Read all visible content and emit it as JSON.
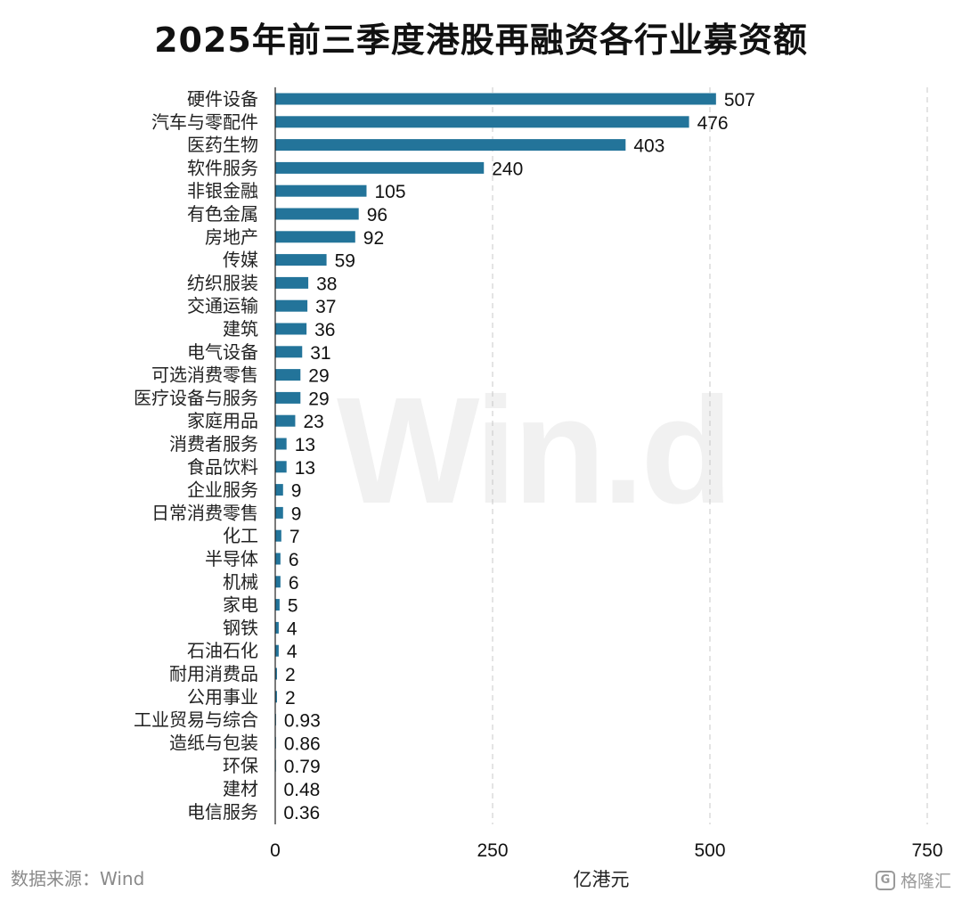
{
  "title": "2025年前三季度港股再融资各行业募资额",
  "source": "数据来源：Wind",
  "watermark": "Win.d",
  "brand": {
    "logo": "G",
    "name": "格隆汇"
  },
  "colors": {
    "bar": "#23749a",
    "grid": "#c8c8c8",
    "axis": "#222222"
  },
  "chart_data": {
    "type": "bar",
    "orientation": "horizontal",
    "categories": [
      "硬件设备",
      "汽车与零配件",
      "医药生物",
      "软件服务",
      "非银金融",
      "有色金属",
      "房地产",
      "传媒",
      "纺织服装",
      "交通运输",
      "建筑",
      "电气设备",
      "可选消费零售",
      "医疗设备与服务",
      "家庭用品",
      "消费者服务",
      "食品饮料",
      "企业服务",
      "日常消费零售",
      "化工",
      "半导体",
      "机械",
      "家电",
      "钢铁",
      "石油石化",
      "耐用消费品",
      "公用事业",
      "工业贸易与综合",
      "造纸与包装",
      "环保",
      "建材",
      "电信服务"
    ],
    "values": [
      507,
      476,
      403,
      240,
      105,
      96,
      92,
      59,
      38,
      37,
      36,
      31,
      29,
      29,
      23,
      13,
      13,
      9,
      9,
      7,
      6,
      6,
      5,
      4,
      4,
      2,
      2,
      0.93,
      0.86,
      0.79,
      0.48,
      0.36
    ],
    "value_labels": [
      "507",
      "476",
      "403",
      "240",
      "105",
      "96",
      "92",
      "59",
      "38",
      "37",
      "36",
      "31",
      "29",
      "29",
      "23",
      "13",
      "13",
      "9",
      "9",
      "7",
      "6",
      "6",
      "5",
      "4",
      "4",
      "2",
      "2",
      "0.93",
      "0.86",
      "0.79",
      "0.48",
      "0.36"
    ],
    "xlabel": "亿港元",
    "xlim": [
      0,
      750
    ],
    "xticks": [
      0,
      250,
      500,
      750
    ],
    "xtick_labels": [
      "0",
      "250",
      "500",
      "750"
    ],
    "grid": "vertical dashed"
  }
}
